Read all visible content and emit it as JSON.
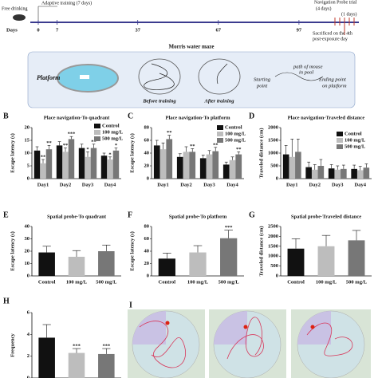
{
  "timeline": {
    "free_drinking": "Free drinking",
    "adaptive": "Adaptive training (7 days)",
    "days_label": "Days",
    "days": [
      0,
      7,
      37,
      67,
      97
    ],
    "navigation": "Navigation Probe trial",
    "nav_days": "(4 days)",
    "probe_days": "(1 days)",
    "sacrificed": [
      "Sacrificed on the 4th",
      "post-exposure day"
    ]
  },
  "maze": {
    "title": "Morris water maze",
    "platform": "Platform",
    "before": "Before training",
    "after": "After training",
    "starting": [
      "Starting",
      "point"
    ],
    "path": [
      "path of mouse",
      "in pool"
    ],
    "ending": [
      "Ending point",
      "on platform"
    ]
  },
  "chart_data": [
    {
      "type": "grouped_bar",
      "panel": "B",
      "title": "Place navigation-To quadrant",
      "y_label": "Escape latency (s)",
      "categories": [
        "Day1",
        "Day2",
        "Day3",
        "Day4"
      ],
      "ylim": [
        0,
        20
      ],
      "yticks": [
        0,
        5,
        10,
        15,
        20
      ],
      "series": [
        {
          "name": "Control",
          "color": "#111111",
          "values": [
            11,
            13,
            12,
            9
          ],
          "errors": [
            1.5,
            1.5,
            1.5,
            1
          ],
          "significance": [
            null,
            null,
            null,
            null
          ]
        },
        {
          "name": "100 mg/L",
          "color": "#bdbdbd",
          "values": [
            6,
            10.5,
            8.5,
            7.5
          ],
          "errors": [
            1.5,
            1.5,
            2,
            1
          ],
          "significance": [
            "**",
            "**",
            "*",
            "*"
          ]
        },
        {
          "name": "500 mg/L",
          "color": "#777777",
          "values": [
            11.5,
            15.5,
            12,
            11
          ],
          "errors": [
            1.5,
            1,
            1.5,
            1
          ],
          "significance": [
            "**",
            "***",
            "**",
            "*"
          ]
        }
      ]
    },
    {
      "type": "grouped_bar",
      "panel": "C",
      "title": "Place navigation-To platform",
      "y_label": "Escape latency (s)",
      "categories": [
        "Day1",
        "Day2",
        "Day3",
        "Day4"
      ],
      "ylim": [
        0,
        80
      ],
      "yticks": [
        0,
        20,
        40,
        60,
        80
      ],
      "series": [
        {
          "name": "Control",
          "color": "#111111",
          "values": [
            52,
            34,
            32,
            22
          ],
          "errors": [
            8,
            5,
            5,
            4
          ],
          "significance": [
            null,
            null,
            null,
            null
          ]
        },
        {
          "name": "100 mg/L",
          "color": "#bdbdbd",
          "values": [
            46,
            42,
            38,
            29
          ],
          "errors": [
            10,
            8,
            6,
            5
          ],
          "significance": [
            null,
            null,
            null,
            null
          ]
        },
        {
          "name": "500 mg/L",
          "color": "#777777",
          "values": [
            62,
            42,
            43,
            38
          ],
          "errors": [
            6,
            5,
            6,
            4
          ],
          "significance": [
            "**",
            "**",
            "**",
            "**"
          ]
        }
      ]
    },
    {
      "type": "grouped_bar",
      "panel": "D",
      "title": "Place navigation-Traveled distance",
      "y_label": "Traveled distance (cm)",
      "categories": [
        "Day1",
        "Day2",
        "Day3",
        "Day4"
      ],
      "ylim": [
        0,
        2000
      ],
      "yticks": [
        0,
        500,
        1000,
        1500,
        2000
      ],
      "series": [
        {
          "name": "Control",
          "color": "#111111",
          "values": [
            950,
            450,
            400,
            380
          ],
          "errors": [
            350,
            200,
            150,
            150
          ],
          "significance": [
            null,
            null,
            null,
            null
          ]
        },
        {
          "name": "100 mg/L",
          "color": "#bdbdbd",
          "values": [
            850,
            350,
            350,
            330
          ],
          "errors": [
            700,
            200,
            150,
            150
          ],
          "significance": [
            null,
            null,
            null,
            null
          ]
        },
        {
          "name": "500 mg/L",
          "color": "#777777",
          "values": [
            1050,
            500,
            380,
            430
          ],
          "errors": [
            500,
            250,
            150,
            150
          ],
          "significance": [
            null,
            null,
            null,
            null
          ]
        }
      ]
    },
    {
      "type": "bar",
      "panel": "E",
      "title": "Spatial probe-To quadrant",
      "y_label": "Escape latency (s)",
      "categories": [
        "Control",
        "100 mg/L",
        "500 mg/L"
      ],
      "colors": [
        "#111111",
        "#bdbdbd",
        "#777777"
      ],
      "values": [
        19,
        15.5,
        20
      ],
      "errors": [
        5,
        5,
        5
      ],
      "significance": [
        null,
        null,
        null
      ],
      "ylim": [
        0,
        40
      ],
      "yticks": [
        0,
        10,
        20,
        30,
        40
      ]
    },
    {
      "type": "bar",
      "panel": "F",
      "title": "Spatial probe-To platform",
      "y_label": "Escape latency (s)",
      "categories": [
        "Control",
        "100 mg/L",
        "500 mg/L"
      ],
      "colors": [
        "#111111",
        "#bdbdbd",
        "#777777"
      ],
      "values": [
        28,
        38,
        61
      ],
      "errors": [
        9,
        11,
        13
      ],
      "significance": [
        null,
        null,
        "***"
      ],
      "ylim": [
        0,
        80
      ],
      "yticks": [
        0,
        20,
        40,
        60,
        80
      ]
    },
    {
      "type": "bar",
      "panel": "G",
      "title": "Spatial probe-Traveled distance",
      "y_label": "Traveled distance (cm)",
      "categories": [
        "Control",
        "100 mg/L",
        "500 mg/L"
      ],
      "colors": [
        "#111111",
        "#bdbdbd",
        "#777777"
      ],
      "values": [
        1380,
        1500,
        1800
      ],
      "errors": [
        500,
        550,
        500
      ],
      "significance": [
        null,
        null,
        null
      ],
      "ylim": [
        0,
        2500
      ],
      "yticks": [
        0,
        500,
        1000,
        1500,
        2000,
        2500
      ]
    },
    {
      "type": "bar",
      "panel": "H",
      "y_label": "Frequency",
      "categories": [
        null,
        null,
        null
      ],
      "colors": [
        "#111111",
        "#bdbdbd",
        "#777777"
      ],
      "values": [
        3.7,
        2.3,
        2.2
      ],
      "errors": [
        1.2,
        0.4,
        0.5
      ],
      "significance": [
        null,
        "***",
        "***"
      ],
      "ylim": [
        0,
        6
      ],
      "yticks": [
        0,
        2,
        4,
        6
      ]
    }
  ],
  "panel_i": "I"
}
